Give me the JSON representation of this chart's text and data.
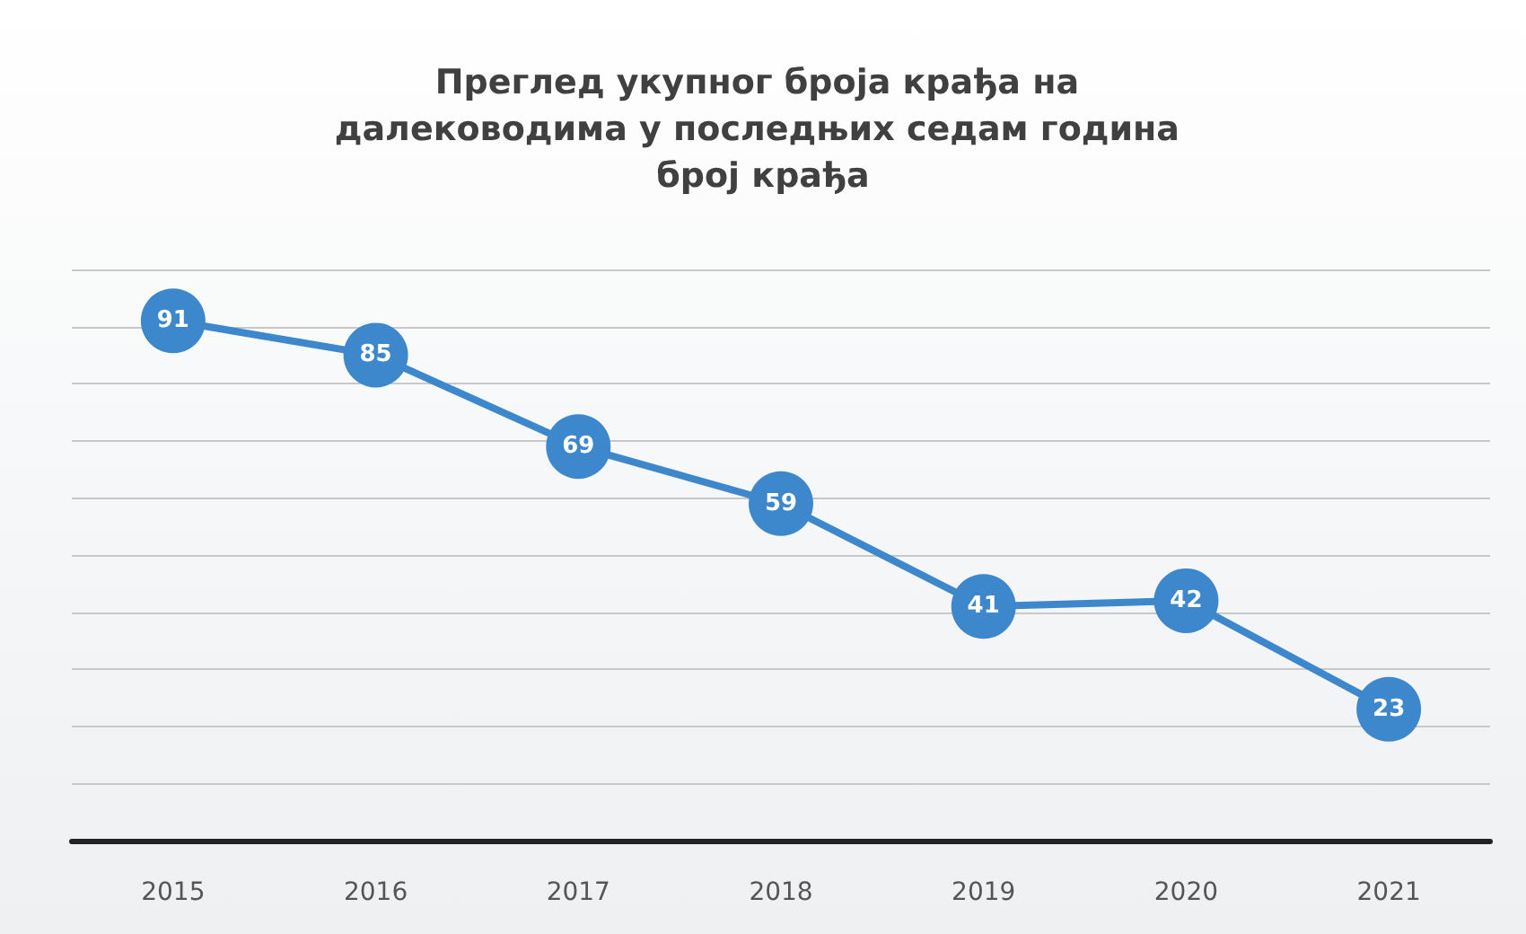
{
  "chart_data": {
    "type": "line",
    "title": "Преглед укупног броја крађа на далеководима у последњих седам година број крађа",
    "categories": [
      "2015",
      "2016",
      "2017",
      "2018",
      "2019",
      "2020",
      "2021"
    ],
    "values": [
      91,
      85,
      69,
      59,
      41,
      42,
      23
    ],
    "color": "#3d87cc",
    "ylim": [
      0,
      100
    ],
    "yticks": [
      {
        "value": 0,
        "label": null
      },
      {
        "value": 10,
        "label": null
      },
      {
        "value": 20,
        "label": null
      },
      {
        "value": 30,
        "label": null
      },
      {
        "value": 40,
        "label": null
      },
      {
        "value": 50,
        "label": null
      },
      {
        "value": 60,
        "label": null
      },
      {
        "value": 70,
        "label": null
      },
      {
        "value": 80,
        "label": null
      },
      {
        "value": 90,
        "label": null
      },
      {
        "value": 100,
        "label": null
      }
    ],
    "grid": "y",
    "tick_labels": "x",
    "marker": "circle",
    "data_labels": true
  }
}
